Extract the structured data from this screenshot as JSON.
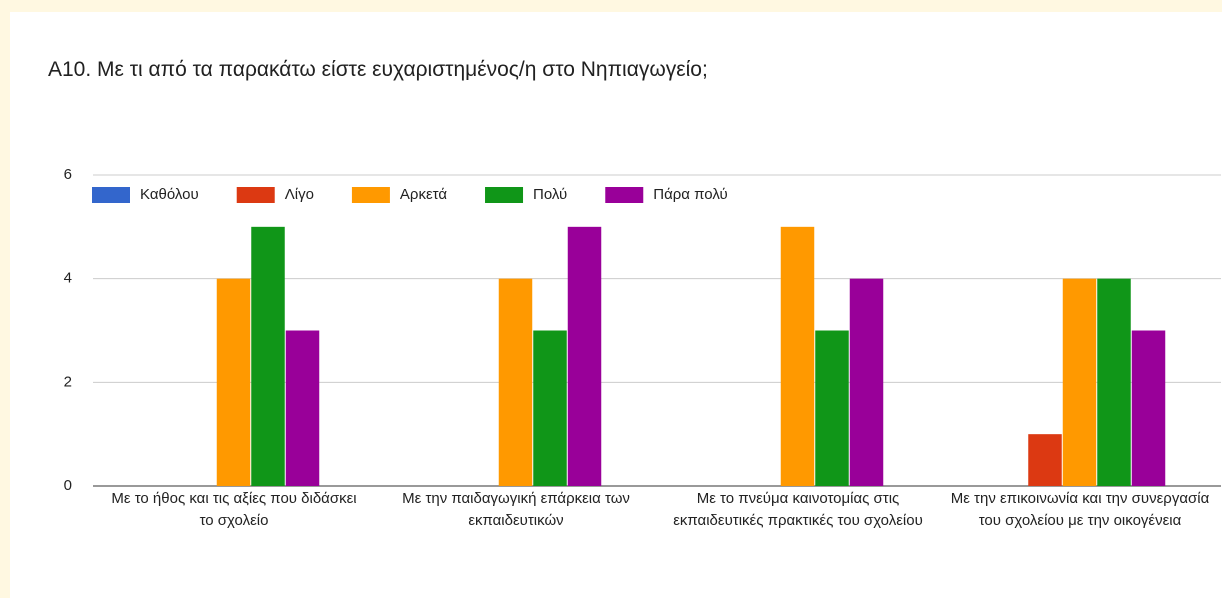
{
  "chart_data": {
    "type": "bar",
    "title": "Α10. Με τι από τα παρακάτω είστε ευχαριστημένος/η στο Νηπιαγωγείο;",
    "categories": [
      "Με το ήθος και τις αξίες που διδάσκει το σχολείο",
      "Με την παιδαγωγική επάρκεια των εκπαιδευτικών",
      "Με το πνεύμα καινοτομίας στις εκπαιδευτικές πρακτικές του σχολείου",
      "Με την επικοινωνία και την συνεργασία του σχολείου με την οικογένεια"
    ],
    "series": [
      {
        "name": "Καθόλου",
        "color": "#3366cc",
        "values": [
          0,
          0,
          0,
          0
        ]
      },
      {
        "name": "Λίγο",
        "color": "#dc3912",
        "values": [
          0,
          0,
          0,
          1
        ]
      },
      {
        "name": "Αρκετά",
        "color": "#ff9900",
        "values": [
          4,
          4,
          5,
          4
        ]
      },
      {
        "name": "Πολύ",
        "color": "#109618",
        "values": [
          5,
          3,
          3,
          4
        ]
      },
      {
        "name": "Πάρα πολύ",
        "color": "#990099",
        "values": [
          3,
          5,
          4,
          3
        ]
      }
    ],
    "ylim": [
      0,
      6
    ],
    "yticks": [
      0,
      2,
      4,
      6
    ],
    "grid": true,
    "legend": "top"
  }
}
